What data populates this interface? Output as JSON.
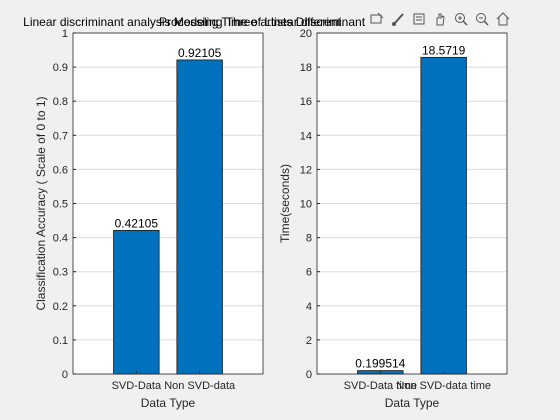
{
  "toolbar": {
    "icons": [
      "annotation-icon",
      "brush-icon",
      "export-icon",
      "pan-icon",
      "zoom-in-icon",
      "zoom-out-icon",
      "home-icon"
    ]
  },
  "chart_data": [
    {
      "type": "bar",
      "title": "Linear discriminant analysis Modeling Three artists Different",
      "categories": [
        "SVD-Data",
        "Non SVD-data"
      ],
      "values": [
        0.42105,
        0.92105
      ],
      "data_labels": [
        "0.42105",
        "0.92105"
      ],
      "xlabel": "Data Type",
      "ylabel": "Classification Accuracy ( Scale of 0 to 1)",
      "ylim": [
        0,
        1
      ],
      "yticks": [
        0,
        0.1,
        0.2,
        0.3,
        0.4,
        0.5,
        0.6,
        0.7,
        0.8,
        0.9,
        1
      ],
      "ytick_labels": [
        "0",
        "0.1",
        "0.2",
        "0.3",
        "0.4",
        "0.5",
        "0.6",
        "0.7",
        "0.8",
        "0.9",
        "1"
      ],
      "grid": true,
      "bar_color": "#0072BD"
    },
    {
      "type": "bar",
      "title": "Processing Time of Linear discriminant",
      "categories": [
        "SVD-Data time",
        "Non SVD-data time"
      ],
      "values": [
        0.199514,
        18.5719
      ],
      "data_labels": [
        "0.199514",
        "18.5719"
      ],
      "xlabel": "Data Type",
      "ylabel": "Time(seconds)",
      "ylim": [
        0,
        20
      ],
      "yticks": [
        0,
        2,
        4,
        6,
        8,
        10,
        12,
        14,
        16,
        18,
        20
      ],
      "ytick_labels": [
        "0",
        "2",
        "4",
        "6",
        "8",
        "10",
        "12",
        "14",
        "16",
        "18",
        "20"
      ],
      "grid": true,
      "bar_color": "#0072BD"
    }
  ]
}
